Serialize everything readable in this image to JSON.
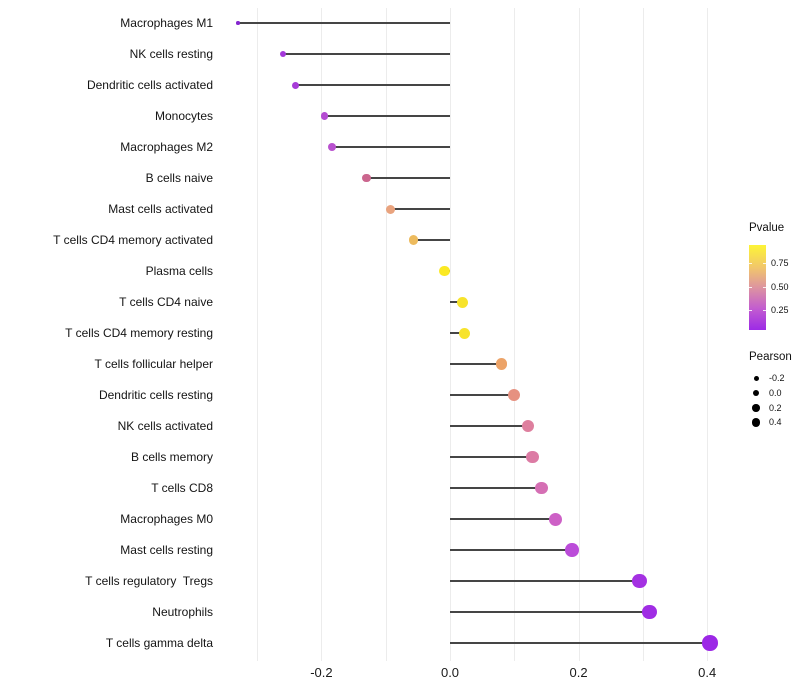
{
  "chart_data": {
    "type": "scatter",
    "variant": "lollipop",
    "title": "",
    "xlabel": "",
    "ylabel": "",
    "xlim": [
      -0.345,
      0.425
    ],
    "x_tick_labels": [
      "-0.2",
      "0.0",
      "0.2",
      "0.4"
    ],
    "x_tick_values": [
      -0.2,
      0.0,
      0.2,
      0.4
    ],
    "x_gridline_values": [
      -0.3,
      -0.2,
      -0.1,
      0.0,
      0.1,
      0.2,
      0.3,
      0.4
    ],
    "grid": true,
    "baseline_x": 0.0,
    "points": [
      {
        "label": "Macrophages M1",
        "pearson": -0.33,
        "dot_color": "#8526cf",
        "dot_size": 3.5
      },
      {
        "label": "NK cells resting",
        "pearson": -0.26,
        "dot_color": "#a438da",
        "dot_size": 6.5
      },
      {
        "label": "Dendritic cells activated",
        "pearson": -0.24,
        "dot_color": "#a73cd8",
        "dot_size": 7
      },
      {
        "label": "Monocytes",
        "pearson": -0.195,
        "dot_color": "#b44cd2",
        "dot_size": 7.5
      },
      {
        "label": "Macrophages M2",
        "pearson": -0.183,
        "dot_color": "#b951cf",
        "dot_size": 8
      },
      {
        "label": "B cells naive",
        "pearson": -0.13,
        "dot_color": "#cb668e",
        "dot_size": 8.5
      },
      {
        "label": "Mast cells activated",
        "pearson": -0.093,
        "dot_color": "#e9a37e",
        "dot_size": 9
      },
      {
        "label": "T cells CD4 memory activated",
        "pearson": -0.057,
        "dot_color": "#edbb5e",
        "dot_size": 9.5
      },
      {
        "label": "Plasma cells",
        "pearson": -0.009,
        "dot_color": "#fbe923",
        "dot_size": 10.5
      },
      {
        "label": "T cells CD4 naive",
        "pearson": 0.02,
        "dot_color": "#f7e32b",
        "dot_size": 11
      },
      {
        "label": "T cells CD4 memory resting",
        "pearson": 0.022,
        "dot_color": "#f7e32b",
        "dot_size": 11
      },
      {
        "label": "T cells follicular helper",
        "pearson": 0.08,
        "dot_color": "#eca368",
        "dot_size": 11.5
      },
      {
        "label": "Dendritic cells resting",
        "pearson": 0.1,
        "dot_color": "#e69180",
        "dot_size": 12
      },
      {
        "label": "NK cells activated",
        "pearson": 0.122,
        "dot_color": "#de7f9e",
        "dot_size": 12
      },
      {
        "label": "B cells memory",
        "pearson": 0.128,
        "dot_color": "#dc7ba4",
        "dot_size": 12.5
      },
      {
        "label": "T cells CD8",
        "pearson": 0.142,
        "dot_color": "#d56fb4",
        "dot_size": 12.5
      },
      {
        "label": "Macrophages M0",
        "pearson": 0.164,
        "dot_color": "#cd60c6",
        "dot_size": 13
      },
      {
        "label": "Mast cells resting",
        "pearson": 0.19,
        "dot_color": "#bb4cd9",
        "dot_size": 13.5
      },
      {
        "label": "T cells regulatory  Tregs",
        "pearson": 0.295,
        "dot_color": "#a431e2",
        "dot_size": 14.5
      },
      {
        "label": "Neutrophils",
        "pearson": 0.31,
        "dot_color": "#a02de4",
        "dot_size": 14.5
      },
      {
        "label": "T cells gamma delta",
        "pearson": 0.404,
        "dot_color": "#9c28e6",
        "dot_size": 15.5
      }
    ],
    "legends": {
      "pvalue": {
        "title": "Pvalue",
        "position": "right",
        "gradient_top_color": "#fdf436",
        "gradient_bottom_color": "#9d2ae6",
        "tick_labels": [
          "0.75",
          "0.50",
          "0.25"
        ]
      },
      "pearson": {
        "title": "Pearson",
        "position": "right",
        "items": [
          {
            "label": "-0.2",
            "dot_size": 5
          },
          {
            "label": "0.0",
            "dot_size": 6.5
          },
          {
            "label": "0.2",
            "dot_size": 7.5
          },
          {
            "label": "0.4",
            "dot_size": 8.5
          }
        ]
      }
    }
  }
}
